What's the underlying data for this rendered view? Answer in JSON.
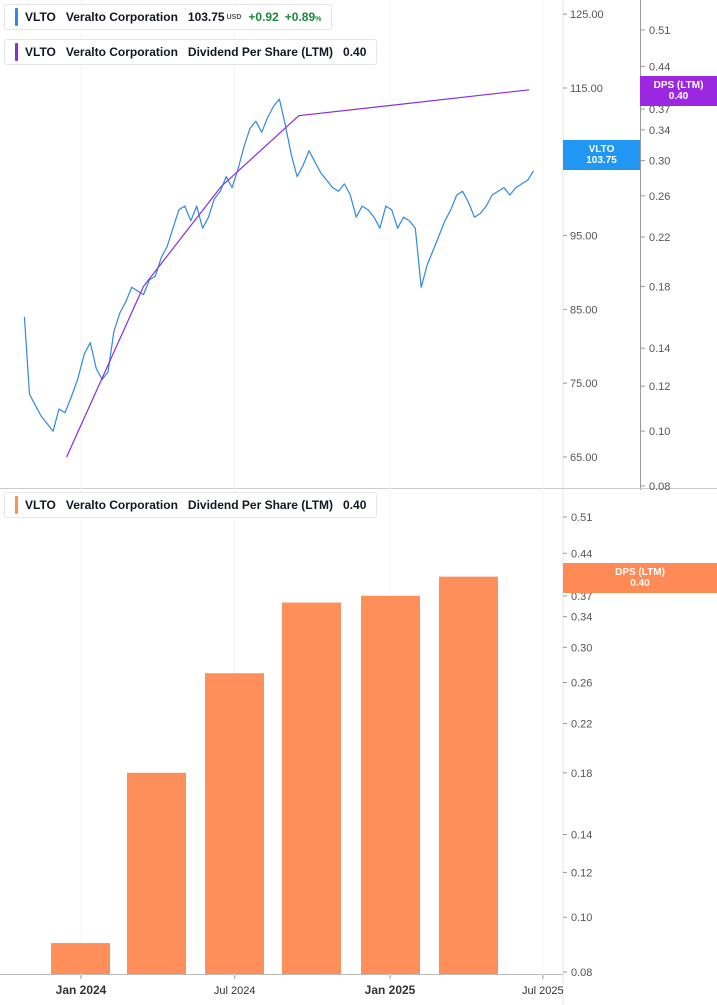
{
  "colors": {
    "price": "#2f8ae0",
    "dps_line": "#8a2be2",
    "dps_bar": "#ff8f5a",
    "price_tag": "#2196f3",
    "dps_tag_top": "#9c27e0",
    "dps_tag_bottom": "#ff8a55",
    "grid": "#e6e6e6"
  },
  "legend_price": {
    "symbol": "VLTO",
    "name": "Veralto Corporation",
    "price": "103.75",
    "currency": "USD",
    "change": "+0.92",
    "change_pct": "+0.89",
    "pct_sign": "%"
  },
  "legend_dps_top": {
    "symbol": "VLTO",
    "name": "Veralto Corporation",
    "metric": "Dividend Per Share (LTM)",
    "value": "0.40"
  },
  "legend_dps_bottom": {
    "symbol": "VLTO",
    "name": "Veralto Corporation",
    "metric": "Dividend Per Share (LTM)",
    "value": "0.40"
  },
  "tags": {
    "price": {
      "label": "VLTO",
      "value": "103.75"
    },
    "dps_top": {
      "label": "DPS (LTM)",
      "value": "0.40"
    },
    "dps_bottom": {
      "label": "DPS (LTM)",
      "value": "0.40"
    }
  },
  "chart_data": [
    {
      "type": "line",
      "panel": "top",
      "series": [
        {
          "name": "VLTO",
          "axis": "price",
          "x": [
            "2023-10-26",
            "2023-11-01",
            "2023-11-08",
            "2023-11-15",
            "2023-11-22",
            "2023-11-29",
            "2023-12-06",
            "2023-12-13",
            "2023-12-20",
            "2023-12-28",
            "2024-01-05",
            "2024-01-12",
            "2024-01-19",
            "2024-01-26",
            "2024-02-02",
            "2024-02-09",
            "2024-02-16",
            "2024-02-23",
            "2024-03-01",
            "2024-03-08",
            "2024-03-15",
            "2024-03-22",
            "2024-03-29",
            "2024-04-05",
            "2024-04-12",
            "2024-04-19",
            "2024-04-26",
            "2024-05-03",
            "2024-05-10",
            "2024-05-17",
            "2024-05-24",
            "2024-05-31",
            "2024-06-07",
            "2024-06-14",
            "2024-06-21",
            "2024-06-28",
            "2024-07-05",
            "2024-07-12",
            "2024-07-19",
            "2024-07-26",
            "2024-08-02",
            "2024-08-09",
            "2024-08-16",
            "2024-08-23",
            "2024-08-30",
            "2024-09-06",
            "2024-09-13",
            "2024-09-20",
            "2024-09-27",
            "2024-10-04",
            "2024-10-11",
            "2024-10-18",
            "2024-10-25",
            "2024-11-01",
            "2024-11-08",
            "2024-11-15",
            "2024-11-22",
            "2024-11-29",
            "2024-12-06",
            "2024-12-13",
            "2024-12-20",
            "2024-12-27",
            "2025-01-03",
            "2025-01-10",
            "2025-01-17",
            "2025-01-24",
            "2025-01-31",
            "2025-02-07",
            "2025-02-14",
            "2025-02-21",
            "2025-02-28",
            "2025-03-07",
            "2025-03-14",
            "2025-03-21",
            "2025-03-28",
            "2025-04-04",
            "2025-04-11",
            "2025-04-18",
            "2025-04-25",
            "2025-05-02",
            "2025-05-09",
            "2025-05-16",
            "2025-05-23",
            "2025-05-30",
            "2025-06-06",
            "2025-06-13",
            "2025-06-20"
          ],
          "values": [
            84.0,
            73.5,
            72.0,
            70.5,
            69.5,
            68.5,
            71.5,
            71.0,
            73.0,
            75.5,
            79.0,
            80.5,
            77.0,
            75.5,
            76.5,
            82.0,
            84.5,
            86.0,
            88.0,
            87.5,
            87.0,
            89.0,
            89.5,
            92.0,
            93.5,
            96.0,
            98.5,
            99.0,
            97.0,
            99.0,
            96.0,
            97.5,
            100.0,
            101.0,
            103.0,
            101.5,
            104.0,
            107.0,
            109.5,
            110.5,
            109.0,
            111.0,
            112.5,
            113.5,
            110.0,
            106.0,
            103.0,
            104.5,
            106.5,
            105.0,
            103.5,
            102.5,
            101.5,
            101.0,
            102.0,
            100.5,
            97.5,
            99.0,
            98.5,
            97.5,
            96.0,
            99.0,
            98.5,
            96.0,
            97.5,
            97.0,
            96.0,
            88.0,
            91.0,
            93.0,
            95.0,
            97.0,
            98.5,
            100.5,
            101.0,
            99.5,
            97.5,
            98.0,
            99.0,
            100.5,
            101.0,
            101.5,
            100.5,
            101.5,
            102.0,
            102.5,
            103.75
          ]
        },
        {
          "name": "DPS (LTM)",
          "axis": "dps",
          "x": [
            "2023-12-15",
            "2024-03-15",
            "2024-06-15",
            "2024-09-15",
            "2025-06-15"
          ],
          "values": [
            0.09,
            0.18,
            0.27,
            0.36,
            0.4
          ]
        }
      ],
      "price_axis": {
        "ticks": [
          65,
          75,
          85,
          95,
          115,
          125
        ]
      },
      "dps_axis": {
        "ticks": [
          0.08,
          0.1,
          0.12,
          0.14,
          0.18,
          0.22,
          0.26,
          0.3,
          0.34,
          0.37,
          0.44,
          0.51
        ]
      }
    },
    {
      "type": "bar",
      "panel": "bottom",
      "categories": [
        "2023-12",
        "2024-03",
        "2024-06",
        "2024-09",
        "2024-12",
        "2025-03"
      ],
      "series": [
        {
          "name": "DPS (LTM)",
          "values": [
            0.09,
            0.18,
            0.27,
            0.36,
            0.37,
            0.4
          ]
        }
      ],
      "dps_axis": {
        "ticks": [
          0.08,
          0.1,
          0.12,
          0.14,
          0.18,
          0.22,
          0.26,
          0.3,
          0.34,
          0.37,
          0.44,
          0.51
        ]
      }
    }
  ],
  "x_axis": {
    "ticks": [
      {
        "label": "Jan 2024",
        "date": "2024-01-01",
        "bold": true
      },
      {
        "label": "Jul 2024",
        "date": "2024-07-01",
        "bold": false
      },
      {
        "label": "Jan 2025",
        "date": "2025-01-01",
        "bold": true
      },
      {
        "label": "Jul 2025",
        "date": "2025-07-01",
        "bold": false
      }
    ]
  }
}
